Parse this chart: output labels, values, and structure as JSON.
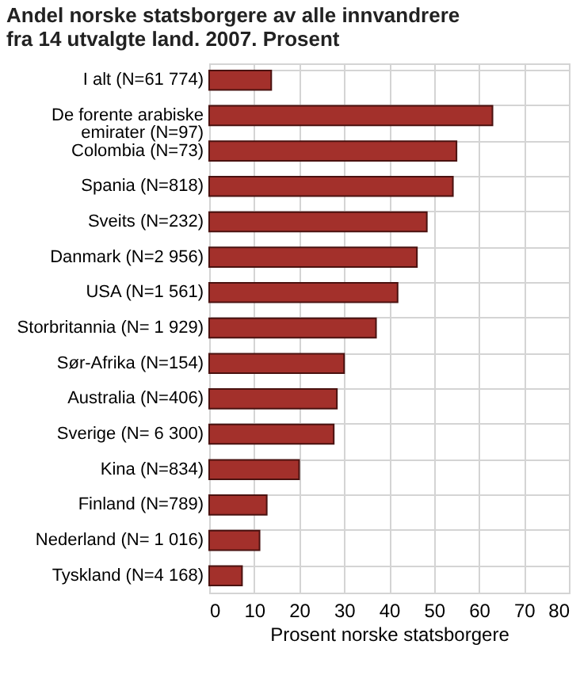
{
  "chart_data": {
    "type": "bar",
    "orientation": "horizontal",
    "title": "Andel norske statsborgere av alle innvandrere fra 14 utvalgte land. 2007. Prosent",
    "xlabel": "Prosent norske statsborgere",
    "categories": [
      "I alt (N=61 774)",
      "De forente arabiske emirater (N=97)",
      "Colombia (N=73)",
      "Spania (N=818)",
      "Sveits (N=232)",
      "Danmark (N=2 956)",
      "USA (N=1 561)",
      "Storbritannia (N= 1 929)",
      "Sør-Afrika (N=154)",
      "Australia (N=406)",
      "Sverige (N= 6 300)",
      "Kina (N=834)",
      "Finland (N=789)",
      "Nederland (N= 1 016)",
      "Tyskland (N=4 168)"
    ],
    "values": [
      13.8,
      63,
      55,
      54.2,
      48.4,
      46.2,
      41.9,
      37.1,
      30,
      28.4,
      27.7,
      20,
      12.8,
      11.2,
      7.3
    ],
    "color": "#a3302b",
    "xlim": [
      0,
      80
    ],
    "xticks": [
      0,
      10,
      20,
      30,
      40,
      50,
      60,
      70,
      80
    ],
    "grid": true
  }
}
